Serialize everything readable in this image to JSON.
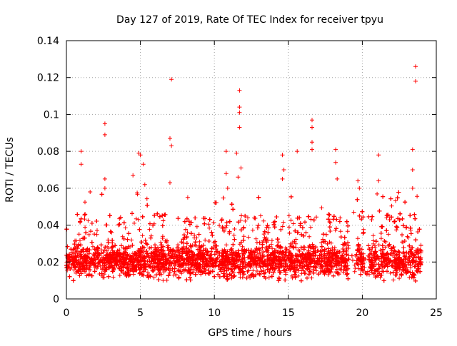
{
  "chart_data": {
    "type": "scatter",
    "title": "Day 127 of 2019, Rate Of TEC Index for receiver tpyu",
    "xlabel": "GPS time / hours",
    "ylabel": "ROTI / TECUs",
    "xlim": [
      0,
      25
    ],
    "ylim": [
      0,
      0.14
    ],
    "xticks": [
      0,
      5,
      10,
      15,
      20,
      25
    ],
    "xtick_labels": [
      "0",
      "5",
      "10",
      "15",
      "20",
      "25"
    ],
    "yticks": [
      0,
      0.02,
      0.04,
      0.06,
      0.08,
      0.1,
      0.12,
      0.14
    ],
    "ytick_labels": [
      "0",
      "0.02",
      "0.04",
      "0.06",
      "0.08",
      "0.1",
      "0.12",
      "0.14"
    ],
    "grid": true,
    "marker": "+",
    "series": [
      {
        "name": "ROTI",
        "color": "#ff0000",
        "x_range": [
          0,
          24
        ],
        "typical_band": [
          0.01,
          0.035
        ],
        "baseline": 0.021,
        "outliers": [
          {
            "x": 1.0,
            "y": 0.08
          },
          {
            "x": 1.0,
            "y": 0.073
          },
          {
            "x": 1.6,
            "y": 0.058
          },
          {
            "x": 2.6,
            "y": 0.095
          },
          {
            "x": 2.6,
            "y": 0.089
          },
          {
            "x": 2.6,
            "y": 0.065
          },
          {
            "x": 2.6,
            "y": 0.06
          },
          {
            "x": 4.5,
            "y": 0.067
          },
          {
            "x": 4.9,
            "y": 0.079
          },
          {
            "x": 5.0,
            "y": 0.078
          },
          {
            "x": 5.2,
            "y": 0.073
          },
          {
            "x": 5.3,
            "y": 0.062
          },
          {
            "x": 7.0,
            "y": 0.087
          },
          {
            "x": 7.1,
            "y": 0.119
          },
          {
            "x": 7.1,
            "y": 0.083
          },
          {
            "x": 7.0,
            "y": 0.063
          },
          {
            "x": 8.2,
            "y": 0.055
          },
          {
            "x": 10.8,
            "y": 0.08
          },
          {
            "x": 10.8,
            "y": 0.068
          },
          {
            "x": 10.9,
            "y": 0.06
          },
          {
            "x": 11.5,
            "y": 0.079
          },
          {
            "x": 11.7,
            "y": 0.113
          },
          {
            "x": 11.7,
            "y": 0.104
          },
          {
            "x": 11.7,
            "y": 0.101
          },
          {
            "x": 11.7,
            "y": 0.093
          },
          {
            "x": 11.8,
            "y": 0.071
          },
          {
            "x": 11.6,
            "y": 0.066
          },
          {
            "x": 14.6,
            "y": 0.078
          },
          {
            "x": 14.7,
            "y": 0.07
          },
          {
            "x": 14.6,
            "y": 0.065
          },
          {
            "x": 15.6,
            "y": 0.08
          },
          {
            "x": 16.6,
            "y": 0.097
          },
          {
            "x": 16.6,
            "y": 0.093
          },
          {
            "x": 16.6,
            "y": 0.085
          },
          {
            "x": 16.6,
            "y": 0.081
          },
          {
            "x": 18.2,
            "y": 0.081
          },
          {
            "x": 18.2,
            "y": 0.074
          },
          {
            "x": 18.3,
            "y": 0.065
          },
          {
            "x": 19.7,
            "y": 0.064
          },
          {
            "x": 19.8,
            "y": 0.06
          },
          {
            "x": 21.1,
            "y": 0.078
          },
          {
            "x": 21.1,
            "y": 0.064
          },
          {
            "x": 23.4,
            "y": 0.081
          },
          {
            "x": 23.4,
            "y": 0.07
          },
          {
            "x": 23.4,
            "y": 0.06
          },
          {
            "x": 23.6,
            "y": 0.126
          },
          {
            "x": 23.6,
            "y": 0.118
          }
        ]
      }
    ]
  }
}
